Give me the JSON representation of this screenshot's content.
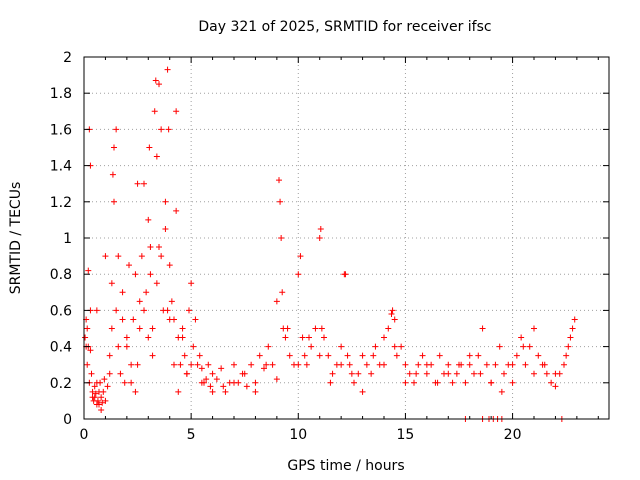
{
  "chart_data": {
    "type": "scatter",
    "title": "Day 321 of 2025, SRMTID for receiver ifsc",
    "xlabel": "GPS time / hours",
    "ylabel": "SRMTID / TECUs",
    "xlim": [
      0,
      24.5
    ],
    "ylim": [
      0,
      2
    ],
    "xticks": [
      0,
      5,
      10,
      15,
      20
    ],
    "yticks": [
      0,
      0.2,
      0.4,
      0.6,
      0.8,
      1,
      1.2,
      1.4,
      1.6,
      1.8,
      2
    ],
    "xtick_labels": [
      "0",
      "5",
      "10",
      "15",
      "20"
    ],
    "ytick_labels": [
      "0",
      "0.2",
      "0.4",
      "0.6",
      "0.8",
      "1",
      "1.2",
      "1.4",
      "1.6",
      "1.8",
      "2"
    ],
    "grid": true,
    "marker": "+",
    "series": [
      {
        "name": "SRMTID",
        "color": "#ff0000",
        "x": [
          0.05,
          0.1,
          0.15,
          0.2,
          0.25,
          0.3,
          0.35,
          0.4,
          0.45,
          0.5,
          0.55,
          0.6,
          0.65,
          0.7,
          0.75,
          0.8,
          0.85,
          0.9,
          0.95,
          1.0,
          1.1,
          1.2,
          1.3,
          1.35,
          1.4,
          1.5,
          1.6,
          1.7,
          1.8,
          1.9,
          2.0,
          2.1,
          2.2,
          2.3,
          2.4,
          2.5,
          2.6,
          2.7,
          2.8,
          2.9,
          3.0,
          3.05,
          3.1,
          3.2,
          3.3,
          3.35,
          3.4,
          3.5,
          3.6,
          3.7,
          3.8,
          3.9,
          3.95,
          4.0,
          4.1,
          4.2,
          4.3,
          4.4,
          4.5,
          4.6,
          4.7,
          4.8,
          4.9,
          5.0,
          5.1,
          5.2,
          5.3,
          5.4,
          5.5,
          5.6,
          5.7,
          5.8,
          5.9,
          6.0,
          6.2,
          6.4,
          6.6,
          6.8,
          7.0,
          7.2,
          7.4,
          7.6,
          7.8,
          8.0,
          8.2,
          8.4,
          8.6,
          8.8,
          9.0,
          9.1,
          9.2,
          9.3,
          9.4,
          9.6,
          9.8,
          10.0,
          10.2,
          10.3,
          10.4,
          10.6,
          10.8,
          11.0,
          11.1,
          11.2,
          11.4,
          11.6,
          11.8,
          12.0,
          12.2,
          12.3,
          12.4,
          12.6,
          12.8,
          13.0,
          13.2,
          13.4,
          13.6,
          13.8,
          14.0,
          14.2,
          14.4,
          14.5,
          14.6,
          14.8,
          15.0,
          15.2,
          15.4,
          15.6,
          15.8,
          16.0,
          16.2,
          16.4,
          16.6,
          16.8,
          17.0,
          17.2,
          17.4,
          17.6,
          17.8,
          18.0,
          18.2,
          18.4,
          18.6,
          18.8,
          19.0,
          19.2,
          19.4,
          19.6,
          19.8,
          20.0,
          20.2,
          20.4,
          20.6,
          20.8,
          21.0,
          21.2,
          21.4,
          21.6,
          21.8,
          22.0,
          22.2,
          22.4,
          22.6,
          22.7,
          22.8,
          22.9,
          0.15,
          0.2,
          0.25,
          0.3,
          0.4,
          0.5,
          0.6,
          0.7,
          0.8,
          1.2,
          1.3,
          1.4,
          1.6,
          1.8,
          2.0,
          2.2,
          2.4,
          2.6,
          2.8,
          3.0,
          3.2,
          3.4,
          3.6,
          3.8,
          4.0,
          4.2,
          4.4,
          4.6,
          4.8,
          5.0,
          5.5,
          6.0,
          6.5,
          7.0,
          7.5,
          8.0,
          8.5,
          9.0,
          9.5,
          10.0,
          10.5,
          11.0,
          11.5,
          12.0,
          12.5,
          13.0,
          13.5,
          14.0,
          14.5,
          15.0,
          15.5,
          16.0,
          16.5,
          17.0,
          17.5,
          18.0,
          18.5,
          19.0,
          19.5,
          20.0,
          20.5,
          21.0,
          21.5,
          22.0,
          22.5,
          0.1,
          0.3,
          0.6,
          1.0,
          1.5,
          2.5,
          3.1,
          3.5,
          3.9,
          4.3,
          9.15,
          9.25,
          10.1,
          11.05,
          12.15,
          14.35,
          17.8,
          18.6,
          18.9,
          19.1,
          19.3,
          19.5,
          22.3
        ],
        "y": [
          0.45,
          0.55,
          0.5,
          0.82,
          1.6,
          1.4,
          0.25,
          0.12,
          0.1,
          0.18,
          0.14,
          0.08,
          0.1,
          0.15,
          0.2,
          0.12,
          0.09,
          0.15,
          0.22,
          0.1,
          0.18,
          0.35,
          0.75,
          1.35,
          1.5,
          0.6,
          0.4,
          0.25,
          0.7,
          0.2,
          0.45,
          0.85,
          0.3,
          0.55,
          0.15,
          0.3,
          0.65,
          0.9,
          1.3,
          0.7,
          1.1,
          1.5,
          0.8,
          0.5,
          1.7,
          1.87,
          1.45,
          0.95,
          1.6,
          0.6,
          1.05,
          1.93,
          1.6,
          0.85,
          0.65,
          0.55,
          1.15,
          0.45,
          0.3,
          0.5,
          0.35,
          0.25,
          0.6,
          0.75,
          0.4,
          0.55,
          0.3,
          0.35,
          0.28,
          0.2,
          0.22,
          0.3,
          0.18,
          0.25,
          0.22,
          0.28,
          0.15,
          0.2,
          0.3,
          0.2,
          0.25,
          0.18,
          0.3,
          0.2,
          0.35,
          0.28,
          0.4,
          0.3,
          0.65,
          1.32,
          1.0,
          0.5,
          0.45,
          0.35,
          0.3,
          0.8,
          0.45,
          0.35,
          0.3,
          0.4,
          0.5,
          1.0,
          0.5,
          0.45,
          0.35,
          0.25,
          0.3,
          0.4,
          0.8,
          0.35,
          0.3,
          0.2,
          0.25,
          0.35,
          0.3,
          0.25,
          0.4,
          0.3,
          0.45,
          0.5,
          0.6,
          0.55,
          0.35,
          0.4,
          0.3,
          0.25,
          0.2,
          0.3,
          0.35,
          0.25,
          0.3,
          0.2,
          0.35,
          0.25,
          0.3,
          0.2,
          0.25,
          0.3,
          0.2,
          0.3,
          0.25,
          0.35,
          0.5,
          0.3,
          0.2,
          0.3,
          0.4,
          0.25,
          0.3,
          0.2,
          0.35,
          0.45,
          0.3,
          0.4,
          0.5,
          0.35,
          0.3,
          0.25,
          0.2,
          0.18,
          0.25,
          0.3,
          0.4,
          0.45,
          0.5,
          0.55,
          0.3,
          0.4,
          0.2,
          0.6,
          0.15,
          0.12,
          0.2,
          0.08,
          0.05,
          0.25,
          0.5,
          1.2,
          0.9,
          0.55,
          0.4,
          0.2,
          0.8,
          0.5,
          0.6,
          0.45,
          0.35,
          0.75,
          0.9,
          1.2,
          0.55,
          0.3,
          0.15,
          0.45,
          0.25,
          0.3,
          0.2,
          0.15,
          0.18,
          0.2,
          0.25,
          0.15,
          0.3,
          0.22,
          0.5,
          0.3,
          0.45,
          0.35,
          0.2,
          0.3,
          0.25,
          0.15,
          0.35,
          0.3,
          0.4,
          0.2,
          0.25,
          0.3,
          0.2,
          0.25,
          0.3,
          0.35,
          0.25,
          0.2,
          0.15,
          0.3,
          0.4,
          0.25,
          0.3,
          0.25,
          0.35,
          0.4,
          0.38,
          0.6,
          0.9,
          1.6,
          1.3,
          0.95,
          1.85,
          0.6,
          1.7,
          1.2,
          0.7,
          0.9,
          1.05,
          0.8,
          0.58,
          0.0,
          0.0,
          0.0,
          0.0,
          0.0,
          0.0,
          0.0
        ]
      }
    ]
  }
}
